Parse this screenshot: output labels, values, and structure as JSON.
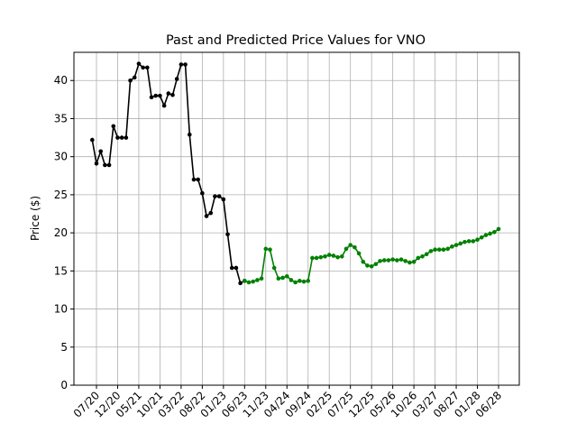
{
  "chart_data": {
    "type": "line",
    "title": "Past and Predicted Price Values for VNO",
    "ylabel": "Price ($)",
    "x": [
      null,
      "07/20",
      null,
      null,
      null,
      null,
      "12/20",
      null,
      null,
      null,
      null,
      "05/21",
      null,
      null,
      null,
      null,
      "10/21",
      null,
      null,
      null,
      null,
      "03/22",
      null,
      null,
      null,
      null,
      "08/22",
      null,
      null,
      null,
      null,
      "01/23",
      null,
      null,
      null,
      null,
      "06/23",
      null,
      null,
      null,
      null,
      "11/23",
      null,
      null,
      null,
      null,
      "04/24",
      null,
      null,
      null,
      null,
      "09/24",
      null,
      null,
      null,
      null,
      "02/25",
      null,
      null,
      null,
      null,
      "07/25",
      null,
      null,
      null,
      null,
      "12/25",
      null,
      null,
      null,
      null,
      "05/26",
      null,
      null,
      null,
      null,
      "10/26",
      null,
      null,
      null,
      null,
      "03/27",
      null,
      null,
      null,
      null,
      "08/27",
      null,
      null,
      null,
      null,
      "01/28",
      null,
      null,
      null,
      null,
      "06/28"
    ],
    "series": [
      {
        "color": "#000000",
        "values": [
          32.2,
          29.1,
          30.7,
          28.9,
          28.9,
          34.0,
          32.5,
          32.5,
          32.5,
          40.0,
          40.4,
          42.2,
          41.7,
          41.7,
          37.8,
          38.0,
          38.0,
          36.7,
          38.3,
          38.1,
          40.2,
          42.1,
          42.1,
          32.9,
          27.0,
          27.0,
          25.2,
          22.2,
          22.6,
          24.8,
          24.8,
          24.4,
          19.8,
          15.4,
          15.4,
          13.4,
          13.7,
          null,
          null,
          null,
          null,
          null,
          null,
          null,
          null,
          null,
          null,
          null,
          null,
          null,
          null,
          null,
          null,
          null,
          null,
          null,
          null,
          null,
          null,
          null,
          null,
          null,
          null,
          null,
          null,
          null,
          null,
          null,
          null,
          null,
          null,
          null,
          null,
          null,
          null,
          null,
          null,
          null,
          null,
          null,
          null,
          null,
          null,
          null,
          null,
          null,
          null,
          null,
          null,
          null,
          null,
          null,
          null,
          null,
          null,
          null,
          null
        ]
      },
      {
        "color": "#008000",
        "values": [
          null,
          null,
          null,
          null,
          null,
          null,
          null,
          null,
          null,
          null,
          null,
          null,
          null,
          null,
          null,
          null,
          null,
          null,
          null,
          null,
          null,
          null,
          null,
          null,
          null,
          null,
          null,
          null,
          null,
          null,
          null,
          null,
          null,
          null,
          null,
          null,
          13.7,
          13.5,
          13.6,
          13.8,
          14.0,
          17.9,
          17.8,
          15.4,
          14.0,
          14.1,
          14.3,
          13.8,
          13.5,
          13.7,
          13.6,
          13.7,
          16.7,
          16.7,
          16.8,
          16.9,
          17.1,
          17.0,
          16.8,
          16.9,
          17.9,
          18.4,
          18.1,
          17.3,
          16.2,
          15.7,
          15.6,
          15.9,
          16.3,
          16.4,
          16.4,
          16.5,
          16.4,
          16.5,
          16.3,
          16.1,
          16.2,
          16.7,
          16.9,
          17.2,
          17.6,
          17.8,
          17.8,
          17.8,
          17.9,
          18.2,
          18.4,
          18.6,
          18.8,
          18.9,
          18.9,
          19.1,
          19.4,
          19.7,
          19.9,
          20.1,
          20.5
        ]
      }
    ],
    "ylim": [
      0,
      43.7
    ],
    "yticks": [
      0,
      5,
      10,
      15,
      20,
      25,
      30,
      35,
      40
    ],
    "grid": true
  }
}
